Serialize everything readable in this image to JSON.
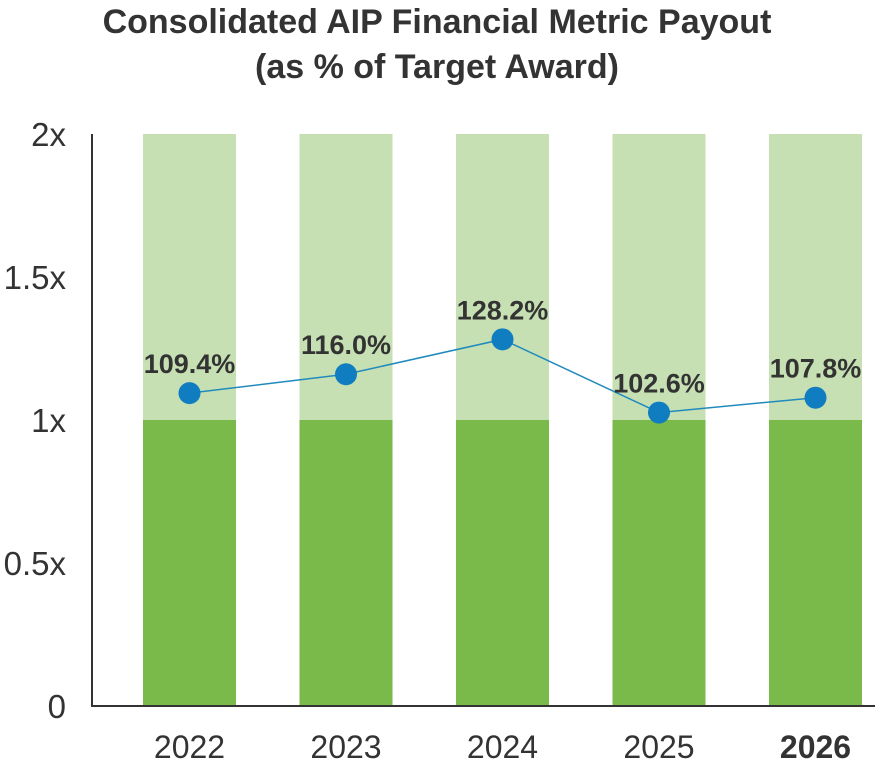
{
  "chart_data": {
    "type": "bar",
    "title_lines": [
      "Consolidated AIP Financial Metric Payout",
      "(as % of Target Award)"
    ],
    "categories": [
      "2022",
      "2023",
      "2024",
      "2025",
      "2026"
    ],
    "highlight_category": "2026",
    "y_ticks": [
      "0",
      "0.5x",
      "1x",
      "1.5x",
      "2x"
    ],
    "ylim": [
      0,
      2
    ],
    "bars": {
      "target": 1.0,
      "maximum": 2.0
    },
    "series": [
      {
        "type": "line",
        "values": [
          1.094,
          1.16,
          1.282,
          1.026,
          1.078
        ],
        "labels": [
          "109.4%",
          "116.0%",
          "128.2%",
          "102.6%",
          "107.8%"
        ]
      }
    ],
    "colors": {
      "bar_dark": "#7aba4a",
      "bar_light": "#c6e0b3",
      "line": "#1f8abd",
      "point": "#0f7dc0",
      "highlight_text": "#1f8abd",
      "text": "#333333",
      "axis": "#333333"
    },
    "grid": false,
    "legend": "none"
  }
}
